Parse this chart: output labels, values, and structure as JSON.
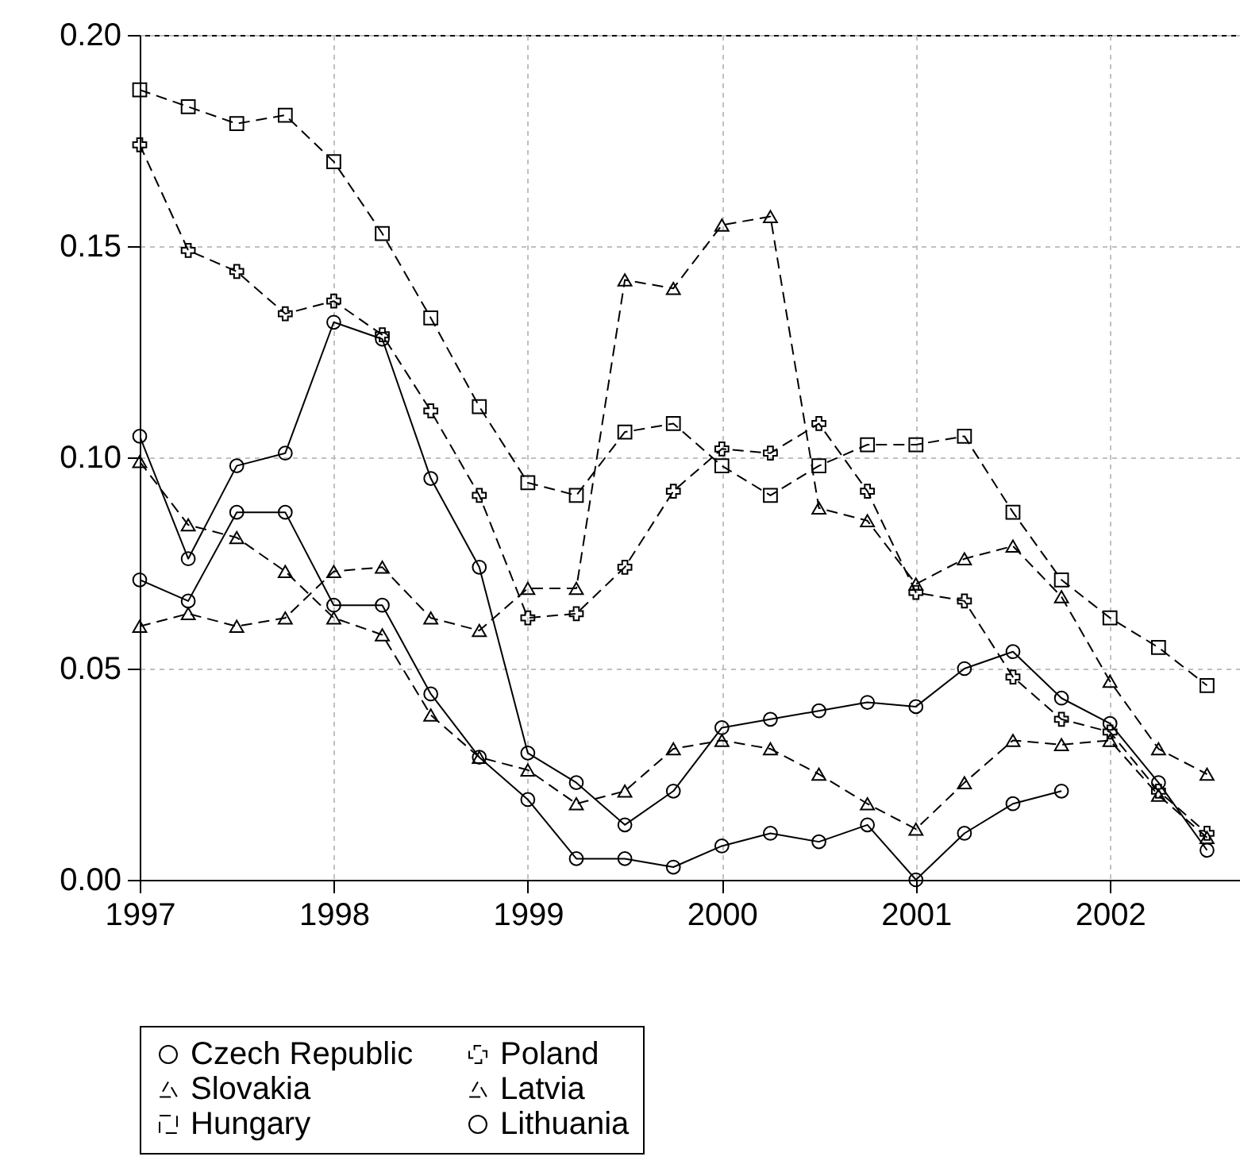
{
  "chart_data": {
    "type": "line",
    "x": [
      1997,
      1997.25,
      1997.5,
      1997.75,
      1998,
      1998.25,
      1998.5,
      1998.75,
      1999,
      1999.25,
      1999.5,
      1999.75,
      2000,
      2000.25,
      2000.5,
      2000.75,
      2001,
      2001.25,
      2001.5,
      2001.75,
      2002,
      2002.25,
      2002.5
    ],
    "series": [
      {
        "name": "Czech Republic",
        "color": "#000000",
        "marker": "circle",
        "line_style": "solid",
        "values": [
          0.105,
          0.076,
          0.098,
          0.101,
          0.132,
          0.128,
          0.095,
          0.074,
          0.03,
          0.023,
          0.013,
          0.021,
          0.036,
          0.038,
          0.04,
          0.042,
          0.041,
          0.05,
          0.054,
          0.043,
          0.037,
          0.023,
          0.007
        ]
      },
      {
        "name": "Poland",
        "color": "#000000",
        "marker": "cross",
        "line_style": "dashed",
        "values": [
          0.174,
          0.149,
          0.144,
          0.134,
          0.137,
          0.129,
          0.111,
          0.091,
          0.062,
          0.063,
          0.074,
          0.092,
          0.102,
          0.101,
          0.108,
          0.092,
          0.068,
          0.066,
          0.048,
          0.038,
          0.035,
          0.021,
          0.011
        ]
      },
      {
        "name": "Slovakia",
        "color": "#000000",
        "marker": "triangle",
        "line_style": "dashed",
        "values": [
          0.06,
          0.063,
          0.06,
          0.062,
          0.073,
          0.074,
          0.062,
          0.059,
          0.069,
          0.069,
          0.142,
          0.14,
          0.155,
          0.157,
          0.088,
          0.085,
          0.07,
          0.076,
          0.079,
          0.067,
          0.047,
          0.031,
          0.025
        ]
      },
      {
        "name": "Latvia",
        "color": "#000000",
        "marker": "triangle",
        "line_style": "dashed",
        "values": [
          0.099,
          0.084,
          0.081,
          0.073,
          0.062,
          0.058,
          0.039,
          0.029,
          0.026,
          0.018,
          0.021,
          0.031,
          0.033,
          0.031,
          0.025,
          0.018,
          0.012,
          0.023,
          0.033,
          0.032,
          0.033,
          0.02,
          0.01
        ]
      },
      {
        "name": "Hungary",
        "color": "#000000",
        "marker": "square",
        "line_style": "dashed",
        "values": [
          0.187,
          0.183,
          0.179,
          0.181,
          0.17,
          0.153,
          0.133,
          0.112,
          0.094,
          0.091,
          0.106,
          0.108,
          0.098,
          0.091,
          0.098,
          0.103,
          0.103,
          0.105,
          0.087,
          0.071,
          0.062,
          0.055,
          0.046
        ]
      },
      {
        "name": "Lithuania",
        "color": "#000000",
        "marker": "circle",
        "line_style": "solid",
        "values": [
          0.071,
          0.066,
          0.087,
          0.087,
          0.065,
          0.065,
          0.044,
          0.029,
          0.019,
          0.005,
          0.005,
          0.003,
          0.008,
          0.011,
          0.009,
          0.013,
          0.0,
          0.011,
          0.018,
          0.021,
          null,
          null,
          null
        ]
      }
    ],
    "xlim": [
      1997,
      2002.67
    ],
    "xticks": [
      1997,
      1998,
      1999,
      2000,
      2001,
      2002
    ],
    "ylim": [
      0,
      0.2
    ],
    "yticks": [
      {
        "value": 0,
        "label": "0.00"
      },
      0.05,
      {
        "value": 0.1,
        "label": "0.10"
      },
      0.15,
      {
        "value": 0.2,
        "label": "0.20"
      }
    ],
    "grid": true,
    "legend": "bottom"
  }
}
